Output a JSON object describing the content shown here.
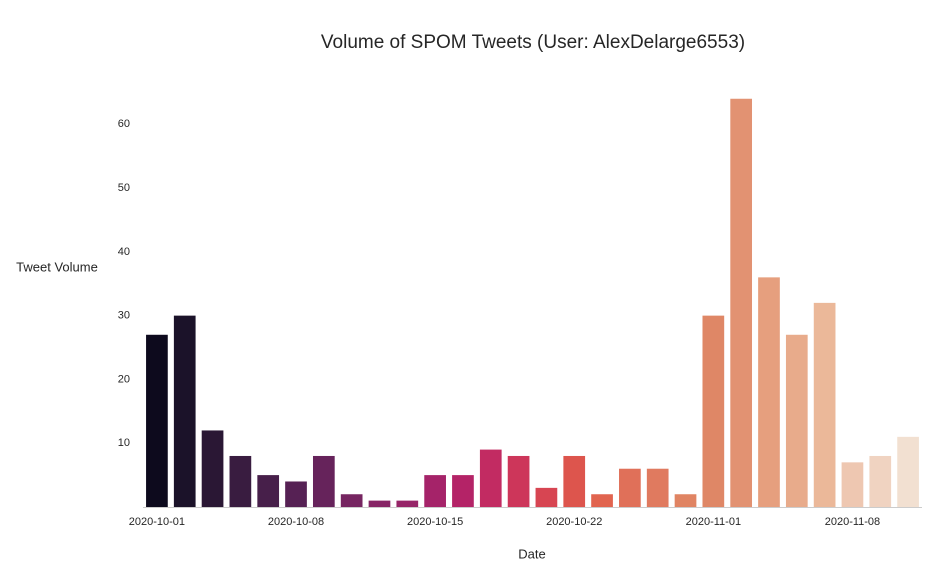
{
  "chart_data": {
    "type": "bar",
    "title": "Volume of SPOM Tweets (User: AlexDelarge6553)",
    "x_label": "Date",
    "y_label": "Tweet Volume",
    "categories": [
      "2020-10-01",
      null,
      null,
      null,
      null,
      "2020-10-08",
      null,
      null,
      null,
      null,
      "2020-10-15",
      null,
      null,
      null,
      null,
      "2020-10-22",
      null,
      null,
      null,
      null,
      "2020-11-01",
      null,
      null,
      null,
      null,
      "2020-11-08",
      null,
      null
    ],
    "values": [
      27,
      30,
      12,
      8,
      5,
      4,
      8,
      2,
      1,
      1,
      5,
      5,
      9,
      8,
      3,
      8,
      2,
      6,
      6,
      2,
      30,
      64,
      36,
      27,
      32,
      7,
      8,
      11
    ],
    "colors": [
      "#0d0a1d",
      "#1b1229",
      "#2a1734",
      "#391c40",
      "#471f4a",
      "#562154",
      "#66235b",
      "#762561",
      "#862565",
      "#962568",
      "#a52369",
      "#b42367",
      "#c22b62",
      "#cd365a",
      "#d74552",
      "#dd554d",
      "#e1644f",
      "#e07059",
      "#e07a5f",
      "#e08463",
      "#df8766",
      "#e29272",
      "#e69f7e",
      "#e8ab8b",
      "#ebb899",
      "#eec7b1",
      "#f0d3c1",
      "#f2e0d1"
    ],
    "ylim": [
      0,
      66
    ],
    "yticks": [
      10,
      20,
      30,
      40,
      50,
      60
    ],
    "grid": false
  }
}
